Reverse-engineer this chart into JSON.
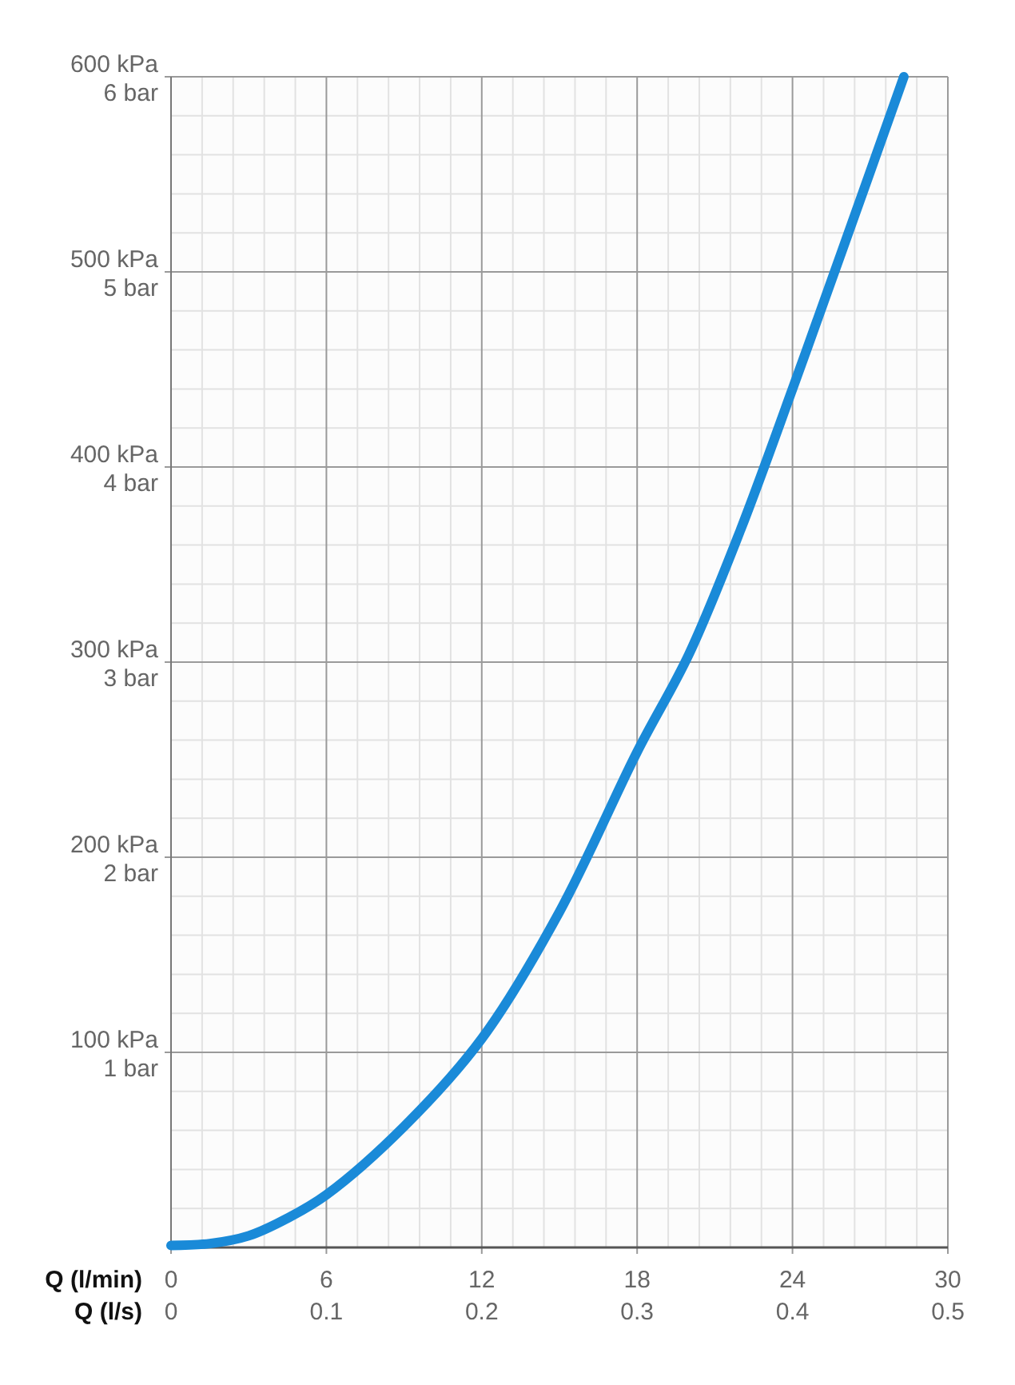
{
  "chart_data": {
    "type": "line",
    "xlabel": "Q (l/min)",
    "x2label": "Q (l/s)",
    "x": [
      0,
      1.5,
      3,
      4.5,
      6,
      9,
      12,
      15,
      18,
      20,
      22,
      24,
      26,
      28.3
    ],
    "series": [
      {
        "color": "#1a8ad8",
        "values": [
          1,
          2,
          6,
          15,
          27,
          62,
          107,
          172,
          254,
          304,
          368,
          440,
          514,
          600
        ]
      }
    ],
    "xlim": [
      0,
      30
    ],
    "xticks": [
      0,
      6,
      12,
      18,
      24,
      30
    ],
    "x2lim": [
      0,
      0.5
    ],
    "x2ticks": [
      0,
      0.1,
      0.2,
      0.3,
      0.4,
      0.5
    ],
    "ylim": [
      0,
      600
    ],
    "yticks": [
      {
        "value": 100,
        "label": "100 kPa"
      },
      {
        "value": 200,
        "label": "200 kPa"
      },
      {
        "value": 300,
        "label": "300 kPa"
      },
      {
        "value": 400,
        "label": "400 kPa"
      },
      {
        "value": 500,
        "label": "500 kPa"
      },
      {
        "value": 600,
        "label": "600 kPa"
      }
    ],
    "y2lim": [
      0,
      6
    ],
    "y2ticks": [
      {
        "value": 1,
        "label": "1 bar"
      },
      {
        "value": 2,
        "label": "2 bar"
      },
      {
        "value": 3,
        "label": "3 bar"
      },
      {
        "value": 4,
        "label": "4 bar"
      },
      {
        "value": 5,
        "label": "5 bar"
      },
      {
        "value": 6,
        "label": "6 bar"
      }
    ],
    "grid": true,
    "marker": "none",
    "line_style": "solid"
  }
}
